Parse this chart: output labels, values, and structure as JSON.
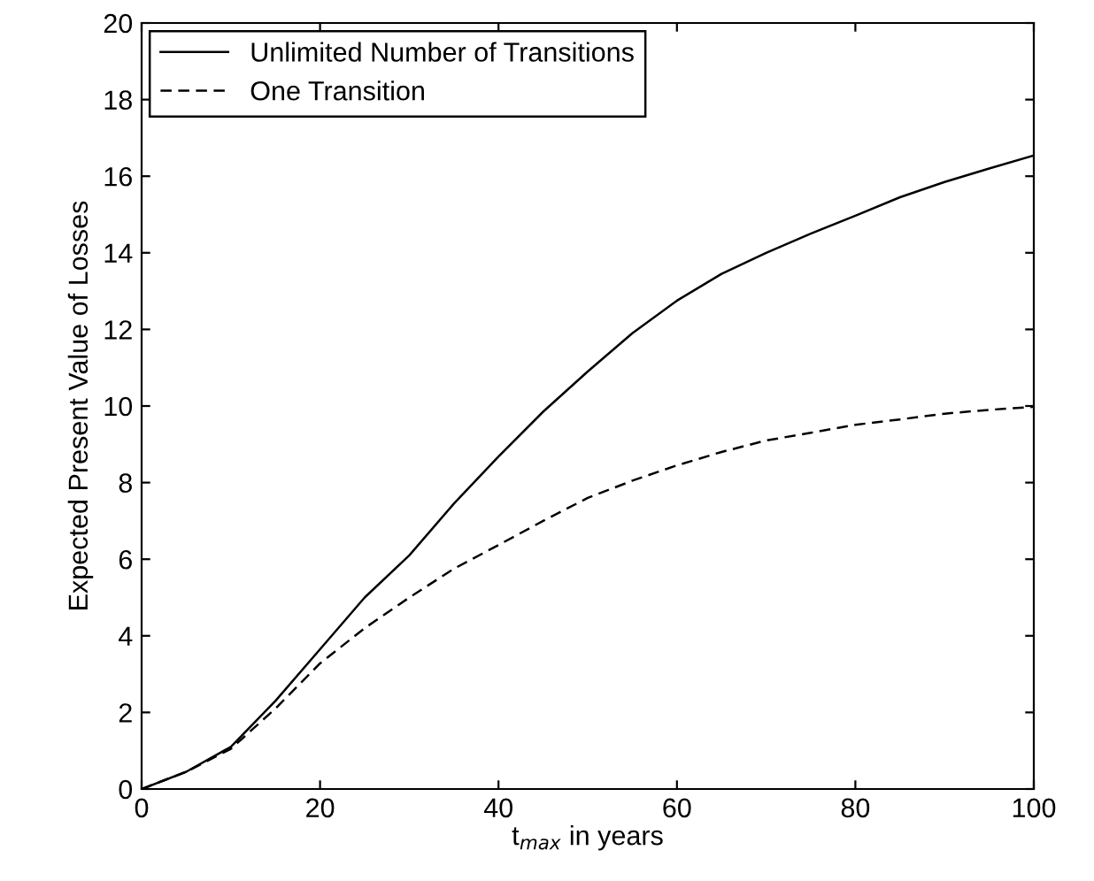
{
  "chart_data": {
    "type": "line",
    "xlabel": "t$_{max}$ in years",
    "ylabel": "Expected Present Value of Losses",
    "x": [
      0,
      5,
      10,
      15,
      20,
      25,
      30,
      35,
      40,
      45,
      50,
      55,
      60,
      65,
      70,
      75,
      80,
      85,
      90,
      95,
      100
    ],
    "series": [
      {
        "name": "Unlimited Number of Transitions",
        "color": "#000000",
        "line_style": "solid",
        "values": [
          0,
          0.45,
          1.1,
          2.3,
          3.65,
          5.0,
          6.1,
          7.45,
          8.68,
          9.85,
          10.9,
          11.9,
          12.75,
          13.45,
          14.0,
          14.5,
          14.97,
          15.45,
          15.85,
          16.2,
          16.54
        ]
      },
      {
        "name": "One Transition",
        "color": "#000000",
        "line_style": "dashed",
        "values": [
          0,
          0.45,
          1.05,
          2.1,
          3.28,
          4.2,
          5.0,
          5.75,
          6.37,
          7.0,
          7.6,
          8.05,
          8.45,
          8.8,
          9.1,
          9.3,
          9.51,
          9.65,
          9.8,
          9.9,
          9.98
        ]
      }
    ],
    "xlim": [
      0,
      100
    ],
    "xticks": [
      0,
      20,
      40,
      60,
      80,
      100
    ],
    "ylim": [
      0,
      20
    ],
    "yticks": [
      0,
      2,
      4,
      6,
      8,
      10,
      12,
      14,
      16,
      18,
      20
    ],
    "grid": false,
    "legend": "top left",
    "marker": "none"
  }
}
